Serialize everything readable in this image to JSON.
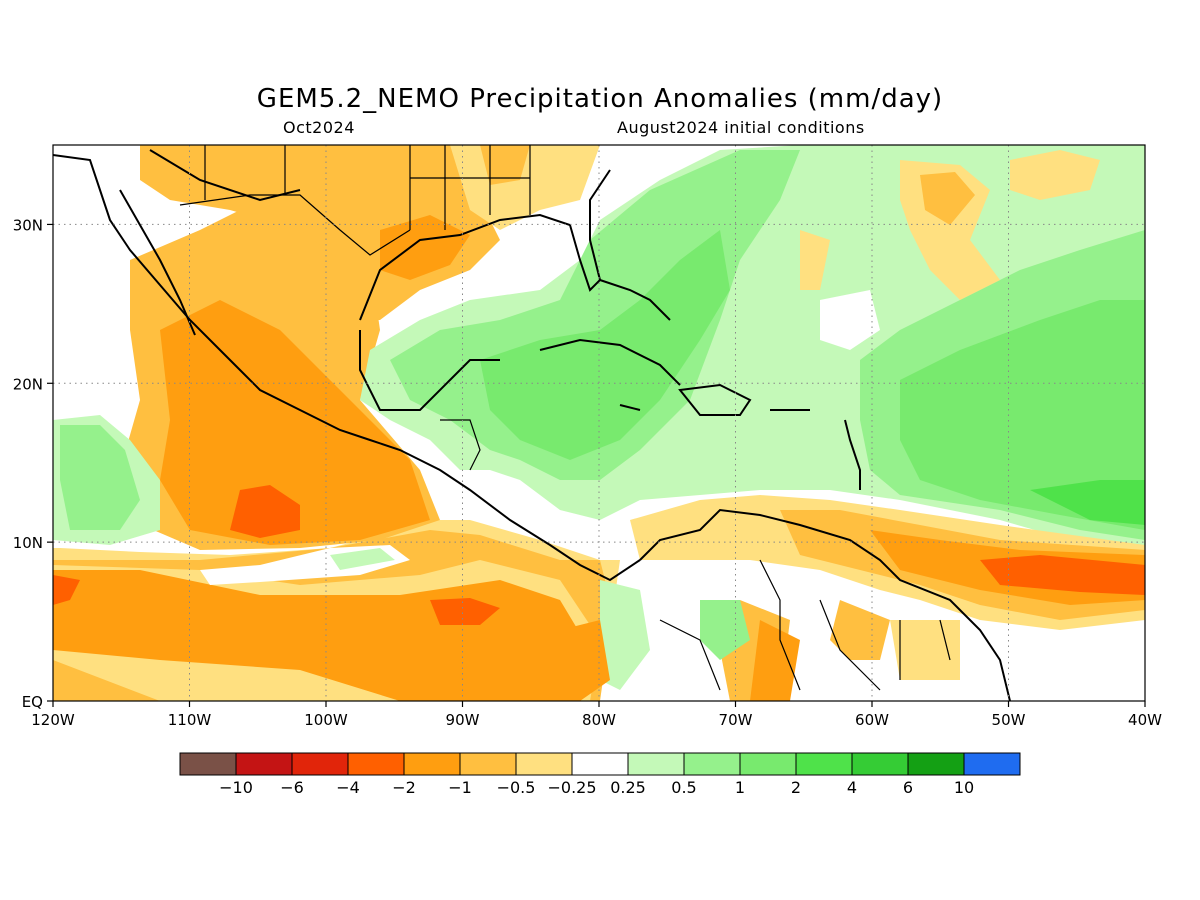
{
  "title": "GEM5.2_NEMO Precipitation Anomalies (mm/day)",
  "subtitle_left": "Oct2024",
  "subtitle_right": "August2024 initial conditions",
  "axes": {
    "lon_ticks": [
      "120W",
      "110W",
      "100W",
      "90W",
      "80W",
      "70W",
      "60W",
      "50W",
      "40W"
    ],
    "lat_ticks": [
      "30N",
      "20N",
      "10N",
      "EQ"
    ],
    "lon_range": [
      -120,
      -40
    ],
    "lat_range": [
      0,
      35
    ]
  },
  "colorbar": {
    "colors": [
      "#7a5147",
      "#c41414",
      "#e1250a",
      "#ff6000",
      "#ff9e10",
      "#ffbf40",
      "#ffe080",
      "#ffffff",
      "#c4f9b8",
      "#95f18c",
      "#78ea6e",
      "#4fe24a",
      "#35cc35",
      "#14a014",
      "#1f6cf0"
    ],
    "labels": [
      "-10",
      "-6",
      "-4",
      "-2",
      "-1",
      "-0.5",
      "-0.25",
      "0.25",
      "0.5",
      "1",
      "2",
      "4",
      "6",
      "10"
    ]
  }
}
